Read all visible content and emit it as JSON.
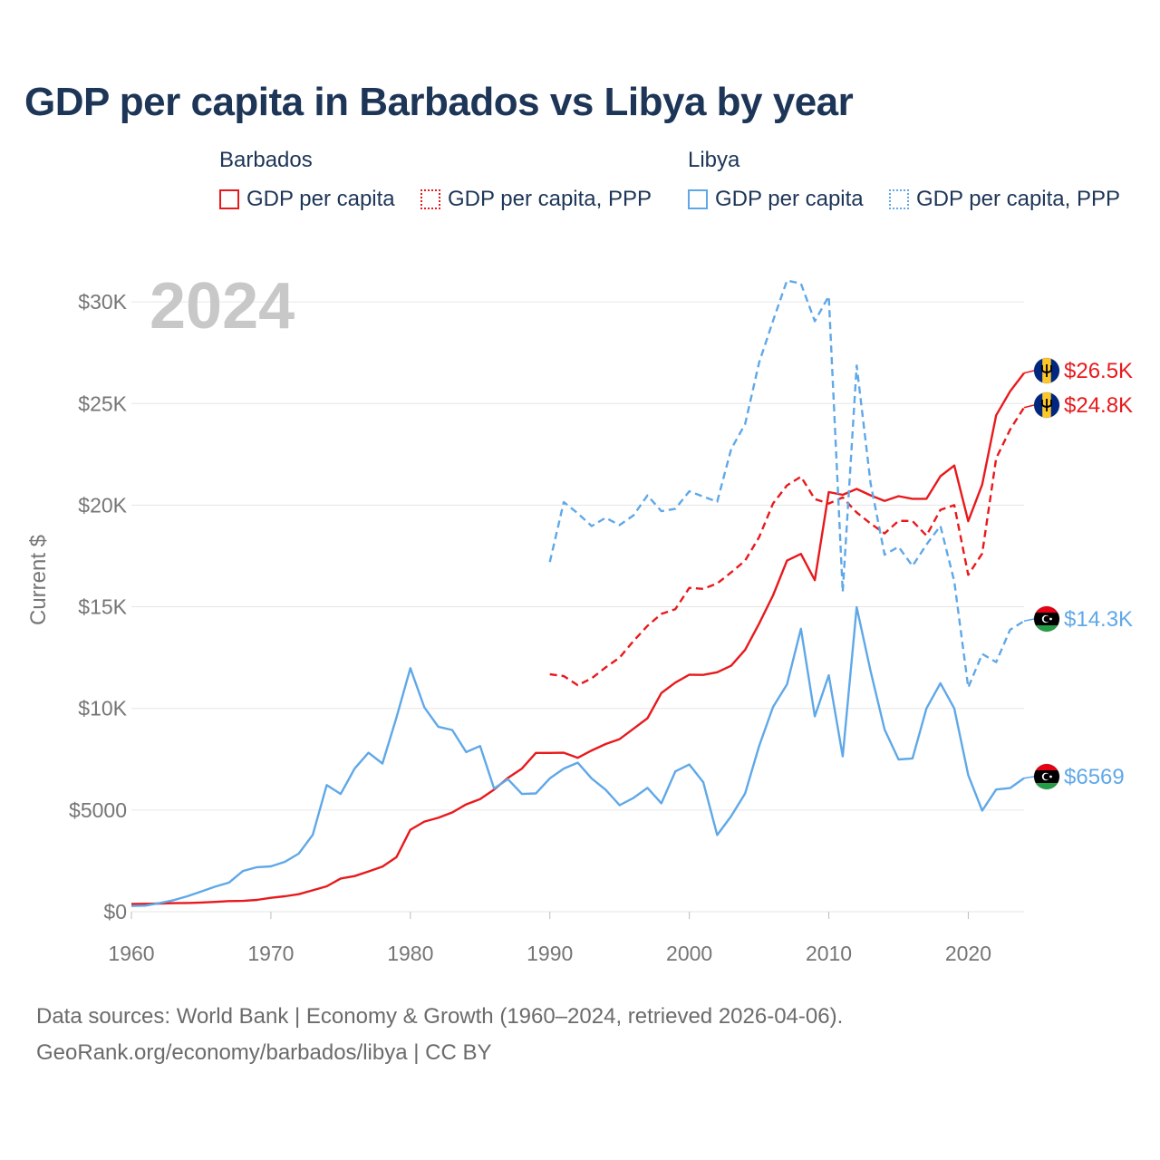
{
  "title": "GDP per capita in Barbados vs Libya by year",
  "legend": {
    "groups": [
      {
        "name": "Barbados",
        "items": [
          "GDP per capita",
          "GDP per capita, PPP"
        ],
        "color": "#e8191c"
      },
      {
        "name": "Libya",
        "items": [
          "GDP per capita",
          "GDP per capita, PPP"
        ],
        "color": "#5fa8e8"
      }
    ]
  },
  "footer": {
    "line1": "Data sources: World Bank | Economy & Growth (1960–2024, retrieved 2026-04-06).",
    "line2": "GeoRank.org/economy/barbados/libya | CC BY"
  },
  "chart_data": {
    "type": "line",
    "title": "GDP per capita in Barbados vs Libya by year",
    "year_label": "2024",
    "ylabel": "Current $",
    "xlabel": "",
    "xlim": [
      1960,
      2024
    ],
    "ylim": [
      0,
      31500
    ],
    "x_ticks": [
      1960,
      1970,
      1980,
      1990,
      2000,
      2010,
      2020
    ],
    "x_tick_labels": [
      "1960",
      "1970",
      "1980",
      "1990",
      "2000",
      "2010",
      "2020"
    ],
    "y_ticks": [
      0,
      5000,
      10000,
      15000,
      20000,
      25000,
      30000
    ],
    "y_tick_labels": [
      "$0",
      "$5000",
      "$10K",
      "$15K",
      "$20K",
      "$25K",
      "$30K"
    ],
    "grid": true,
    "series": [
      {
        "name": "Barbados GDP per capita",
        "color": "#e8191c",
        "dash": "solid",
        "start_year": 1960,
        "values": [
          380,
          390,
          400,
          420,
          430,
          450,
          480,
          520,
          530,
          580,
          680,
          760,
          860,
          1050,
          1250,
          1630,
          1750,
          1980,
          2220,
          2680,
          4030,
          4430,
          4620,
          4880,
          5280,
          5540,
          6010,
          6580,
          7040,
          7810,
          7810,
          7820,
          7570,
          7930,
          8250,
          8490,
          9000,
          9520,
          10760,
          11270,
          11660,
          11650,
          11780,
          12100,
          12880,
          14170,
          15560,
          17270,
          17600,
          16310,
          20640,
          20510,
          20800,
          20480,
          20210,
          20440,
          20310,
          20310,
          21420,
          21950,
          19210,
          21010,
          24420,
          25600,
          26500
        ],
        "end_label": "$26.5K",
        "end_flag": "barbados-flag"
      },
      {
        "name": "Barbados GDP per capita, PPP",
        "color": "#e8191c",
        "dash": "dashed",
        "start_year": 1990,
        "values": [
          11680,
          11590,
          11140,
          11480,
          12020,
          12500,
          13320,
          14060,
          14650,
          14880,
          15930,
          15880,
          16150,
          16690,
          17270,
          18420,
          20080,
          20970,
          21400,
          20300,
          20080,
          20380,
          19640,
          19090,
          18610,
          19230,
          19220,
          18500,
          19770,
          20000,
          16570,
          17620,
          22300,
          23720,
          24800
        ],
        "end_label": "$24.8K",
        "end_flag": "barbados-flag"
      },
      {
        "name": "Libya GDP per capita",
        "color": "#5fa8e8",
        "dash": "solid",
        "start_year": 1960,
        "values": [
          280,
          300,
          420,
          560,
          760,
          990,
          1230,
          1430,
          2000,
          2190,
          2230,
          2450,
          2860,
          3780,
          6230,
          5790,
          7040,
          7820,
          7290,
          9540,
          11980,
          10060,
          9100,
          8940,
          7850,
          8150,
          6060,
          6520,
          5790,
          5820,
          6560,
          7040,
          7330,
          6550,
          6000,
          5240,
          5600,
          6090,
          5330,
          6900,
          7240,
          6370,
          3770,
          4700,
          5820,
          8140,
          10070,
          11180,
          13920,
          9610,
          11630,
          7640,
          14980,
          11830,
          8960,
          7490,
          7540,
          10000,
          11240,
          10000,
          6720,
          4970,
          6010,
          6080,
          6570
        ],
        "end_label": "$6569",
        "end_flag": "libya-flag"
      },
      {
        "name": "Libya GDP per capita, PPP",
        "color": "#5fa8e8",
        "dash": "dashed",
        "start_year": 1990,
        "values": [
          17200,
          20150,
          19600,
          18970,
          19380,
          19020,
          19500,
          20480,
          19700,
          19820,
          20680,
          20420,
          20170,
          22760,
          23990,
          27010,
          29070,
          31050,
          30900,
          29050,
          30280,
          15730,
          26870,
          21060,
          17560,
          17950,
          17010,
          18060,
          18980,
          16250,
          11030,
          12680,
          12280,
          13870,
          14300
        ],
        "end_label": "$14.3K",
        "end_flag": "libya-flag"
      }
    ]
  }
}
